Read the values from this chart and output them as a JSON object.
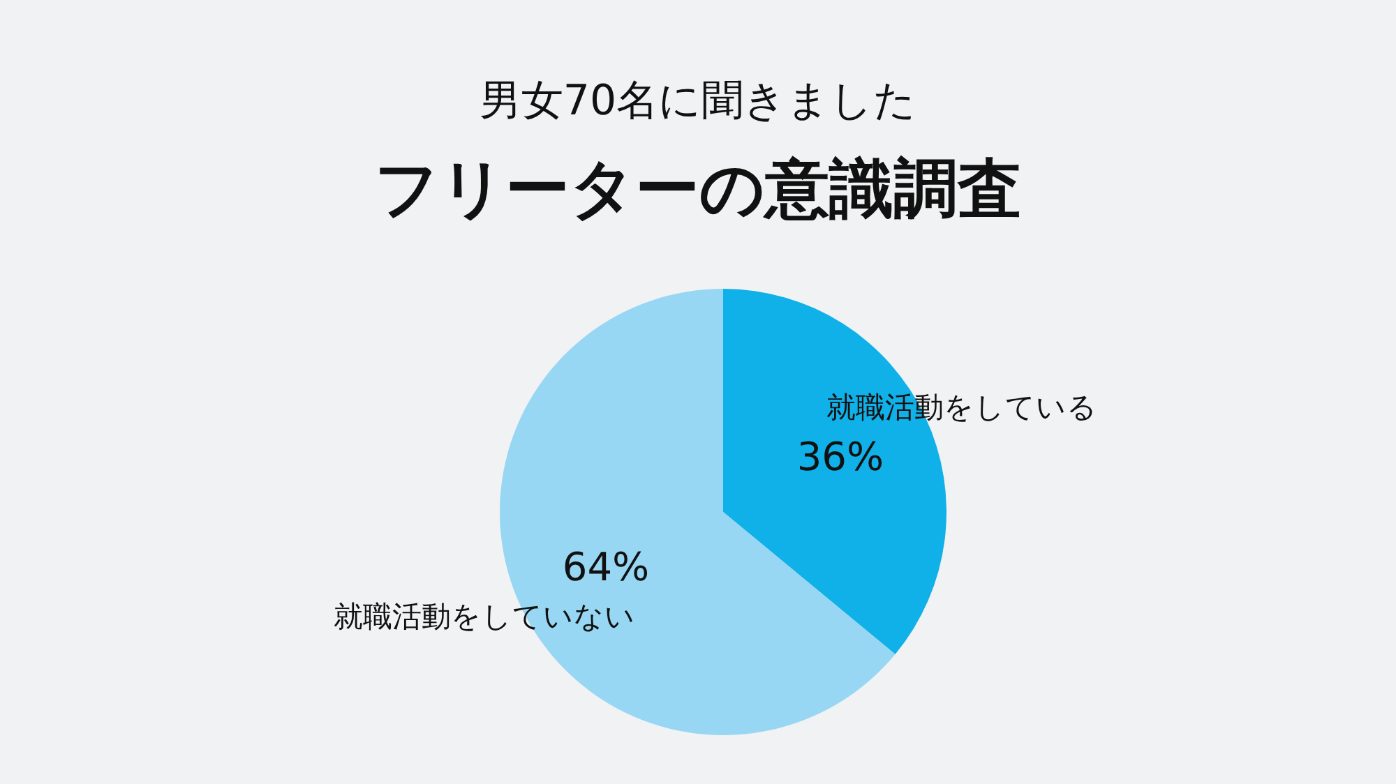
{
  "chart_data": {
    "type": "pie",
    "subtitle": "男女70名に聞きました",
    "title": "フリーターの意識調査",
    "categories": [
      "就職活動をしている",
      "就職活動をしていない"
    ],
    "values": [
      36,
      64
    ],
    "colors": [
      "#10b0e8",
      "#97d7f3"
    ],
    "value_labels": [
      "36%",
      "64%"
    ],
    "legend": false
  }
}
